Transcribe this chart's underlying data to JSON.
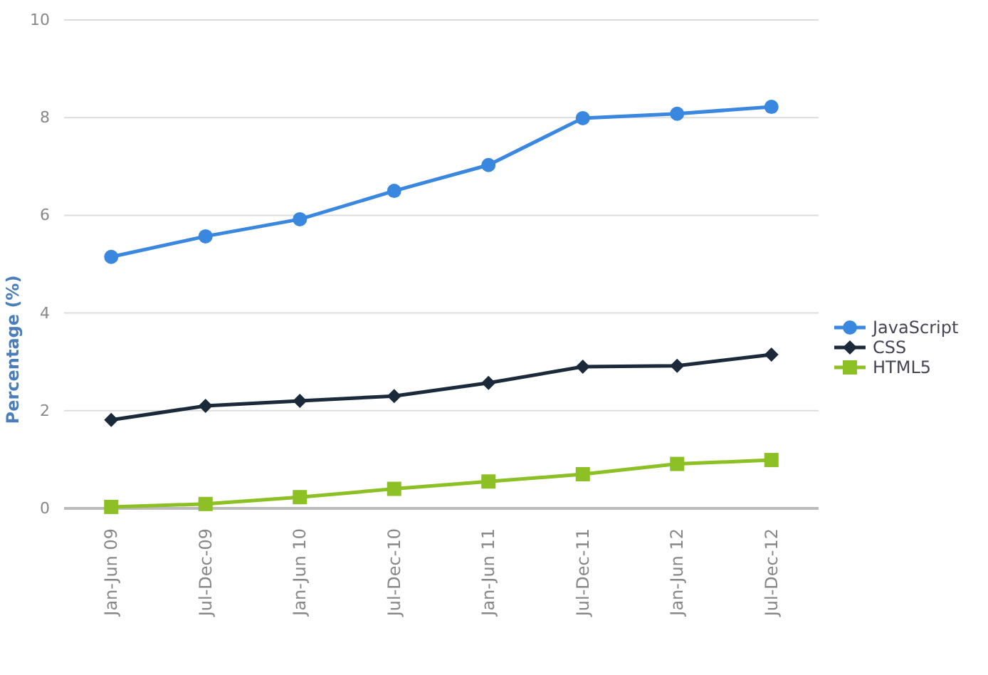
{
  "chart_data": {
    "type": "line",
    "ylabel": "Percentage (%)",
    "categories": [
      "Jan-Jun 09",
      "Jul-Dec-09",
      "Jan-Jun 10",
      "Jul-Dec-10",
      "Jan-Jun 11",
      "Jul-Dec-11",
      "Jan-Jun 12",
      "Jul-Dec-12"
    ],
    "series": [
      {
        "name": "JavaScript",
        "color": "#3a87e0",
        "marker": "circle",
        "values": [
          5.15,
          5.57,
          5.92,
          6.5,
          7.03,
          7.99,
          8.08,
          8.22
        ]
      },
      {
        "name": "CSS",
        "color": "#1b2a3a",
        "marker": "diamond",
        "values": [
          1.81,
          2.1,
          2.2,
          2.3,
          2.57,
          2.9,
          2.92,
          3.15
        ]
      },
      {
        "name": "HTML5",
        "color": "#8cc025",
        "marker": "square",
        "values": [
          0.03,
          0.09,
          0.23,
          0.4,
          0.55,
          0.7,
          0.91,
          0.99
        ]
      }
    ],
    "ylim": [
      0,
      10
    ],
    "yticks": [
      0,
      2,
      4,
      6,
      8,
      10
    ],
    "grid": "y",
    "legend": "right",
    "line_style": "solid"
  }
}
